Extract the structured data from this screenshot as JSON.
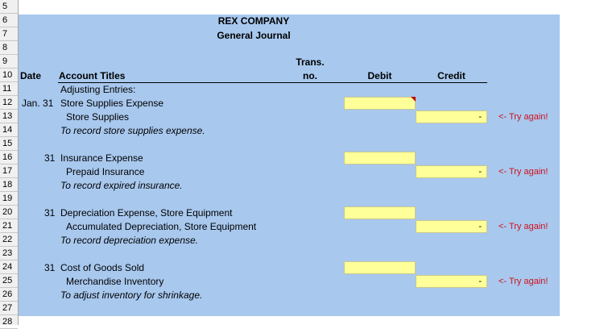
{
  "row_numbers": [
    "5",
    "6",
    "7",
    "8",
    "9",
    "10",
    "11",
    "12",
    "13",
    "14",
    "15",
    "16",
    "17",
    "18",
    "19",
    "20",
    "21",
    "22",
    "23",
    "24",
    "25",
    "26",
    "27",
    "28"
  ],
  "title": {
    "company": "REX COMPANY",
    "journal": "General Journal"
  },
  "headers": {
    "date": "Date",
    "account": "Account Titles",
    "trans_top": "Trans.",
    "trans_bottom": "no.",
    "debit": "Debit",
    "credit": "Credit"
  },
  "adjusting_label": "Adjusting Entries:",
  "entries": [
    {
      "date": "Jan. 31",
      "debit_account": "Store Supplies Expense",
      "credit_account": "Store Supplies",
      "explanation": "To record store supplies expense.",
      "credit_value": "-",
      "feedback": "<- Try again!"
    },
    {
      "date": "31",
      "debit_account": "Insurance Expense",
      "credit_account": "Prepaid Insurance",
      "explanation": "To record expired insurance.",
      "credit_value": "-",
      "feedback": "<- Try again!"
    },
    {
      "date": "31",
      "debit_account": "Depreciation Expense, Store Equipment",
      "credit_account": "Accumulated Depreciation, Store Equipment",
      "explanation": "To record depreciation expense.",
      "credit_value": "-",
      "feedback": "<- Try again!"
    },
    {
      "date": "31",
      "debit_account": "Cost of Goods Sold",
      "credit_account": "Merchandise Inventory",
      "explanation": "To adjust inventory for shrinkage.",
      "credit_value": "-",
      "feedback": "<- Try again!"
    }
  ],
  "colors": {
    "background": "#a8c8ee",
    "input": "#ffff99",
    "error": "#d0101a"
  }
}
